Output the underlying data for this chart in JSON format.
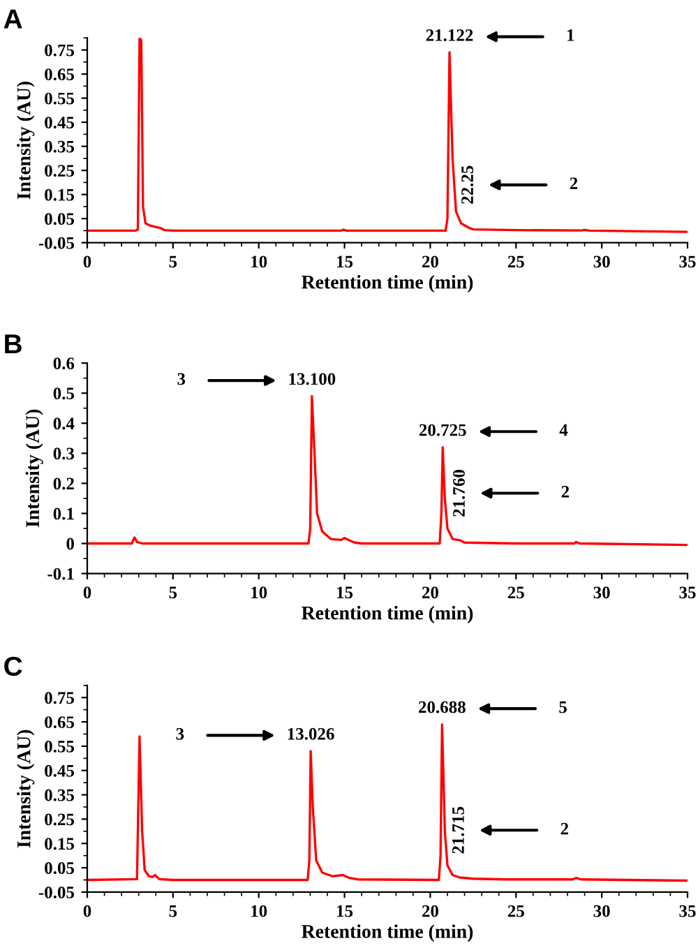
{
  "chart_data": [
    {
      "type": "line",
      "title": "A",
      "xlabel": "Retention time (min)",
      "ylabel": "Intensity (AU)",
      "xlim": [
        0,
        35
      ],
      "ylim": [
        -0.05,
        0.8
      ],
      "xticks": [
        0,
        5,
        10,
        15,
        20,
        25,
        30,
        35
      ],
      "yticks": [
        -0.05,
        0.05,
        0.15,
        0.25,
        0.35,
        0.45,
        0.55,
        0.65,
        0.75
      ],
      "x": [
        0,
        2.8,
        2.95,
        3.05,
        3.15,
        3.25,
        3.4,
        3.7,
        4.0,
        4.3,
        4.5,
        5,
        14.8,
        14.95,
        15.1,
        20.9,
        21.0,
        21.122,
        21.3,
        21.5,
        21.8,
        22.25,
        22.5,
        25,
        28.8,
        29,
        29.3,
        35
      ],
      "series": [
        {
          "color": "#ff0000",
          "values": [
            0,
            0,
            0.005,
            0.8,
            0.79,
            0.1,
            0.03,
            0.02,
            0.015,
            0.01,
            0.002,
            0,
            0,
            0.004,
            0,
            0,
            0.05,
            0.74,
            0.3,
            0.08,
            0.03,
            0.012,
            0.005,
            0.002,
            0.001,
            0.003,
            0,
            -0.005
          ]
        }
      ],
      "annotations": [
        {
          "text": "21.122",
          "x": 21.122,
          "y": 0.74
        },
        "1",
        {
          "text": "22.25",
          "x": 22.25,
          "y": 0.012
        },
        "2"
      ]
    },
    {
      "type": "line",
      "title": "B",
      "xlabel": "Retention time (min)",
      "ylabel": "Intensity (AU)",
      "xlim": [
        0,
        35
      ],
      "ylim": [
        -0.1,
        0.6
      ],
      "xticks": [
        0,
        5,
        10,
        15,
        20,
        25,
        30,
        35
      ],
      "yticks": [
        -0.1,
        0,
        0.1,
        0.2,
        0.3,
        0.4,
        0.5,
        0.6
      ],
      "x": [
        0,
        2.6,
        2.75,
        2.9,
        3.2,
        12.9,
        13.0,
        13.1,
        13.25,
        13.4,
        13.7,
        14.2,
        14.8,
        15.0,
        15.3,
        15.6,
        16,
        20.55,
        20.65,
        20.725,
        20.85,
        21.0,
        21.3,
        21.76,
        22,
        25,
        28.4,
        28.5,
        28.7,
        35
      ],
      "series": [
        {
          "color": "#ff0000",
          "values": [
            0,
            0,
            0.02,
            0.005,
            0,
            0,
            0.05,
            0.49,
            0.3,
            0.1,
            0.04,
            0.015,
            0.012,
            0.018,
            0.01,
            0.003,
            0,
            0,
            0.1,
            0.32,
            0.15,
            0.05,
            0.015,
            0.01,
            0.003,
            0,
            0,
            0.005,
            0,
            -0.005
          ]
        }
      ],
      "annotations": [
        {
          "text": "13.100",
          "x": 13.1,
          "y": 0.49
        },
        "3",
        {
          "text": "20.725",
          "x": 20.725,
          "y": 0.32
        },
        "4",
        {
          "text": "21.760",
          "x": 21.76,
          "y": 0.01
        },
        "2"
      ]
    },
    {
      "type": "line",
      "title": "C",
      "xlabel": "Retention time (min)",
      "ylabel": "Intensity (AU)",
      "xlim": [
        0,
        35
      ],
      "ylim": [
        -0.05,
        0.8
      ],
      "xticks": [
        0,
        5,
        10,
        15,
        20,
        25,
        30,
        35
      ],
      "yticks": [
        -0.05,
        0.05,
        0.15,
        0.25,
        0.35,
        0.45,
        0.55,
        0.65,
        0.75
      ],
      "x": [
        0,
        2.9,
        3.05,
        3.2,
        3.35,
        3.6,
        3.8,
        3.95,
        4.2,
        5,
        12.85,
        12.95,
        13.026,
        13.15,
        13.35,
        13.7,
        14.3,
        14.9,
        15.3,
        15.8,
        20.5,
        20.6,
        20.688,
        20.85,
        21.0,
        21.3,
        21.715,
        22.5,
        24.5,
        28.3,
        28.5,
        28.8,
        35
      ],
      "series": [
        {
          "color": "#ff0000",
          "values": [
            0,
            0.003,
            0.59,
            0.2,
            0.04,
            0.015,
            0.012,
            0.02,
            0.003,
            0,
            0,
            0.08,
            0.53,
            0.3,
            0.08,
            0.03,
            0.015,
            0.02,
            0.008,
            0.002,
            0,
            0.1,
            0.64,
            0.2,
            0.06,
            0.02,
            0.01,
            0.005,
            0.002,
            0.002,
            0.008,
            0.002,
            -0.003
          ]
        }
      ],
      "annotations": [
        {
          "text": "13.026",
          "x": 13.026,
          "y": 0.53
        },
        "3",
        {
          "text": "20.688",
          "x": 20.688,
          "y": 0.64
        },
        "5",
        {
          "text": "21.715",
          "x": 21.715,
          "y": 0.01
        },
        "2"
      ]
    }
  ]
}
